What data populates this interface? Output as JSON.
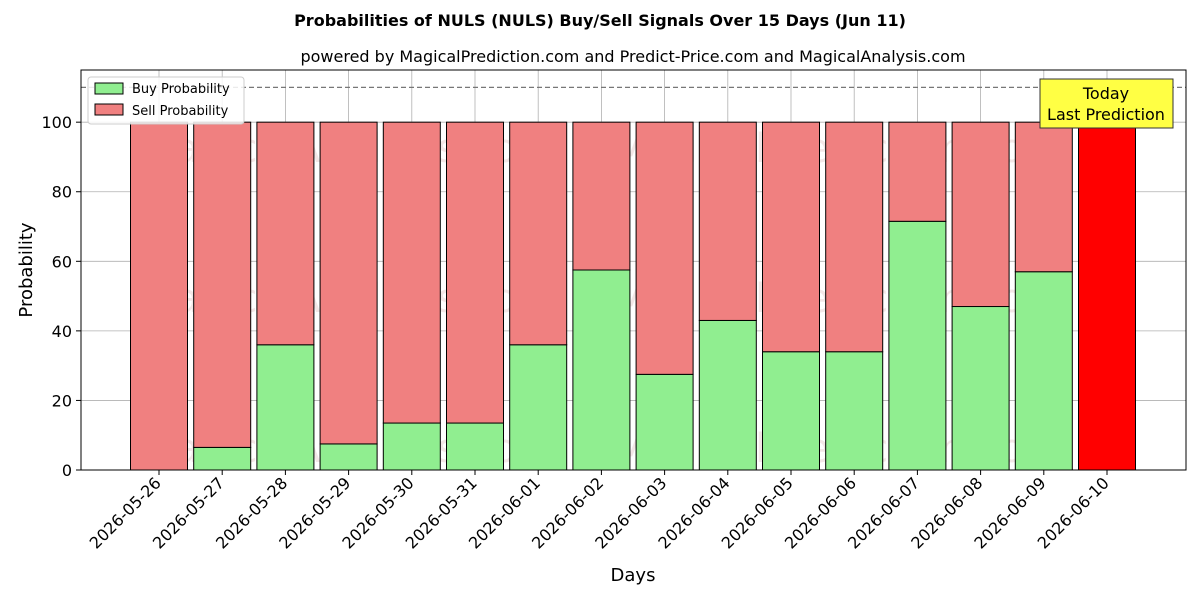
{
  "chart_data": {
    "type": "bar",
    "title": "Probabilities of NULS (NULS) Buy/Sell Signals Over 15 Days (Jun 11)",
    "subtitle": "powered by MagicalPrediction.com and Predict-Price.com and MagicalAnalysis.com",
    "xlabel": "Days",
    "ylabel": "Probability",
    "ylim": [
      0,
      115
    ],
    "yticks": [
      0,
      20,
      40,
      60,
      80,
      100
    ],
    "reference_line": 110,
    "grid": true,
    "legend_position": "top-left",
    "categories": [
      "2026-05-26",
      "2026-05-27",
      "2026-05-28",
      "2026-05-29",
      "2026-05-30",
      "2026-05-31",
      "2026-06-01",
      "2026-06-02",
      "2026-06-03",
      "2026-06-04",
      "2026-06-05",
      "2026-06-06",
      "2026-06-07",
      "2026-06-08",
      "2026-06-09",
      "2026-06-10"
    ],
    "series": [
      {
        "name": "Buy Probability",
        "color": "#90ee90",
        "values": [
          0,
          6.5,
          36,
          7.5,
          13.5,
          13.5,
          36,
          57.5,
          27.5,
          43,
          34,
          34,
          71.5,
          47,
          57,
          0
        ]
      },
      {
        "name": "Sell Probability",
        "color": "#f08080",
        "values": [
          100,
          93.5,
          64,
          92.5,
          86.5,
          86.5,
          64,
          42.5,
          72.5,
          57,
          66,
          66,
          28.5,
          53,
          43,
          100
        ]
      }
    ],
    "highlight": {
      "index": 15,
      "color": "#ff0000"
    },
    "annotation": {
      "lines": [
        "Today",
        "Last Prediction"
      ],
      "background": "#ffff44"
    },
    "watermarks": [
      "MagicalAnalysis.com",
      "MagicalPrediction.com"
    ]
  }
}
